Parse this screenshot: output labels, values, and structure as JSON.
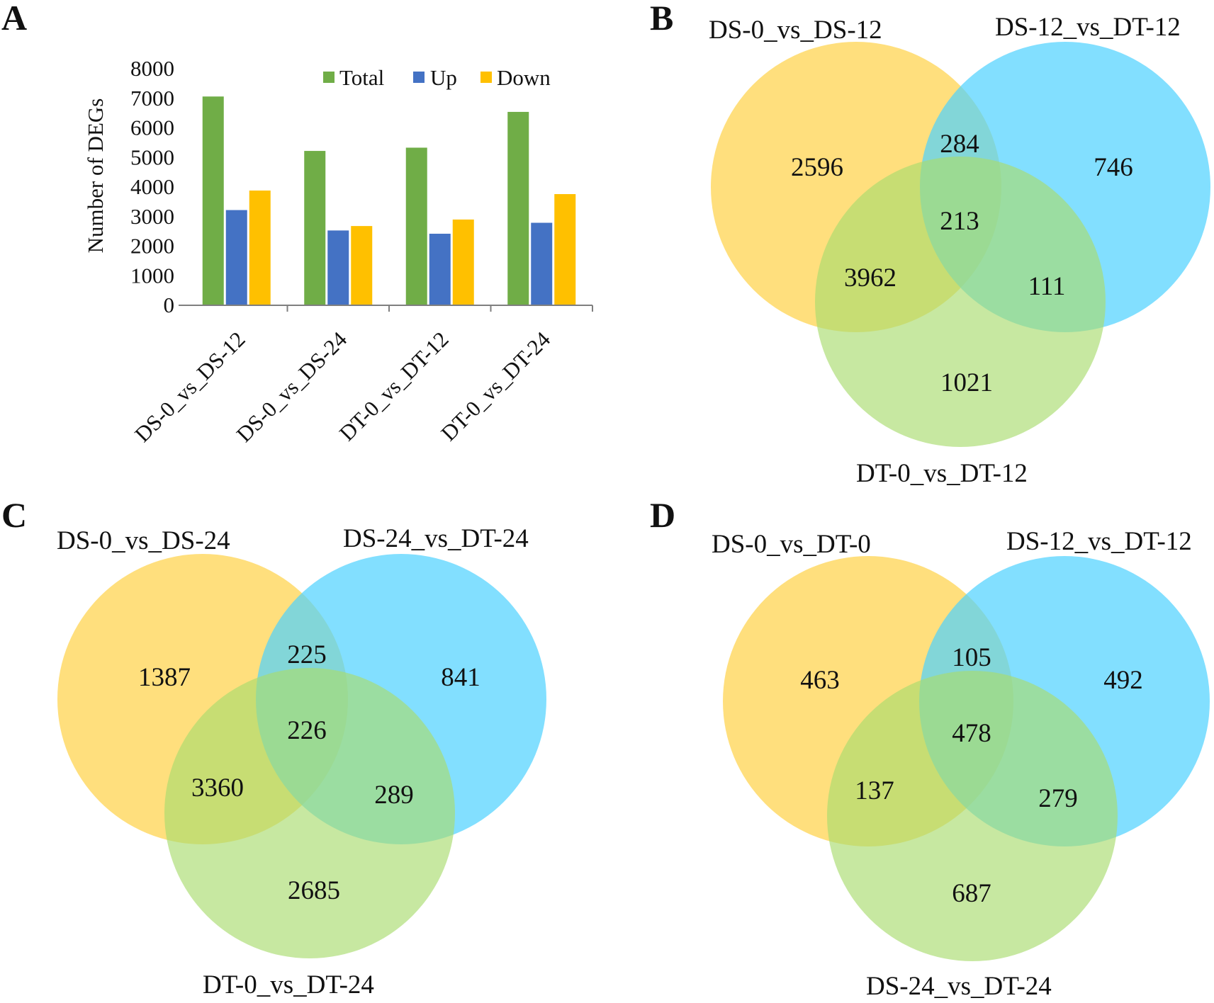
{
  "panels": {
    "A": "A",
    "B": "B",
    "C": "C",
    "D": "D"
  },
  "colors": {
    "total": "#70ad47",
    "up": "#4472c4",
    "down": "#ffc000",
    "venn_yellow": "#ffd966",
    "venn_blue": "#4dd2ff",
    "venn_green": "#a9dc6e"
  },
  "chart_data": [
    {
      "type": "bar",
      "panel": "A",
      "title": "",
      "xlabel": "",
      "ylabel": "Number of DEGs",
      "ylim": [
        0,
        8000
      ],
      "yticks": [
        "0",
        "1000",
        "2000",
        "3000",
        "4000",
        "5000",
        "6000",
        "7000",
        "8000"
      ],
      "categories": [
        "DS-0_vs_DS-12",
        "DS-0_vs_DS-24",
        "DT-0_vs_DT-12",
        "DT-0_vs_DT-24"
      ],
      "series": [
        {
          "name": "Total",
          "values": [
            7060,
            5220,
            5330,
            6540
          ]
        },
        {
          "name": "Up",
          "values": [
            3220,
            2530,
            2420,
            2790
          ]
        },
        {
          "name": "Down",
          "values": [
            3880,
            2680,
            2900,
            3760
          ]
        }
      ],
      "legend": "top-right"
    },
    {
      "type": "venn",
      "panel": "B",
      "sets": [
        "DS-0_vs_DS-12",
        "DS-12_vs_DT-12",
        "DT-0_vs_DT-12"
      ],
      "regions": {
        "a": "2596",
        "b": "746",
        "c": "1021",
        "ab": "284",
        "abc": "213",
        "ac": "3962",
        "bc": "111"
      }
    },
    {
      "type": "venn",
      "panel": "C",
      "sets": [
        "DS-0_vs_DS-24",
        "DS-24_vs_DT-24",
        "DT-0_vs_DT-24"
      ],
      "regions": {
        "a": "1387",
        "b": "841",
        "c": "2685",
        "ab": "225",
        "abc": "226",
        "ac": "3360",
        "bc": "289"
      }
    },
    {
      "type": "venn",
      "panel": "D",
      "sets": [
        "DS-0_vs_DT-0",
        "DS-12_vs_DT-12",
        "DS-24_vs_DT-24"
      ],
      "regions": {
        "a": "463",
        "b": "492",
        "c": "687",
        "ab": "105",
        "abc": "478",
        "ac": "137",
        "bc": "279"
      }
    }
  ]
}
